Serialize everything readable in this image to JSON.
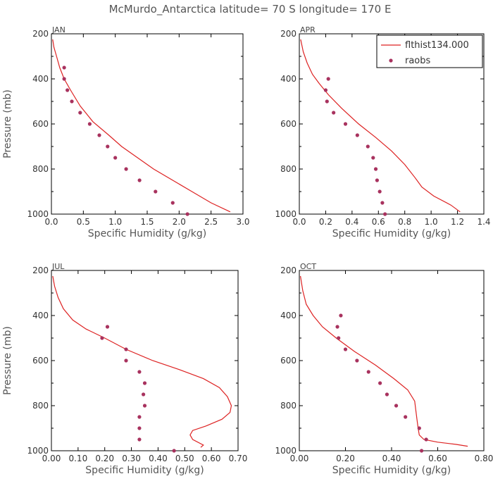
{
  "figure": {
    "title": "McMurdo_Antarctica  latitude= 70 S longitude= 170 E",
    "colors": {
      "model": "#dd2222",
      "obs": "#a8325e",
      "frame": "#000000"
    }
  },
  "chart_data": [
    {
      "type": "line",
      "title": "JAN",
      "xlabel": "Specific Humidity (g/kg)",
      "ylabel": "Pressure (mb)",
      "xlim": [
        0,
        3.0
      ],
      "ylim": [
        200,
        1000
      ],
      "xticks": [
        "0.0",
        "0.5",
        "1.0",
        "1.5",
        "2.0",
        "2.5",
        "3.0"
      ],
      "yticks": [
        "200",
        "400",
        "600",
        "800",
        "1000"
      ],
      "series": [
        {
          "name": "flthist134.000",
          "kind": "line",
          "x": [
            0.02,
            0.04,
            0.08,
            0.13,
            0.2,
            0.3,
            0.45,
            0.65,
            0.9,
            1.1,
            1.35,
            1.6,
            1.9,
            2.2,
            2.5,
            2.8
          ],
          "y": [
            225,
            260,
            300,
            350,
            400,
            450,
            520,
            590,
            650,
            700,
            750,
            800,
            850,
            900,
            950,
            990
          ]
        },
        {
          "name": "raobs",
          "kind": "scatter",
          "x": [
            0.2,
            0.2,
            0.25,
            0.32,
            0.45,
            0.6,
            0.75,
            0.88,
            1.0,
            1.17,
            1.38,
            1.63,
            1.9,
            2.13
          ],
          "y": [
            350,
            400,
            450,
            500,
            550,
            600,
            650,
            700,
            750,
            800,
            850,
            900,
            950,
            1000
          ]
        }
      ]
    },
    {
      "type": "line",
      "title": "APR",
      "xlabel": "Specific Humidity (g/kg)",
      "ylabel": "",
      "xlim": [
        0,
        1.4
      ],
      "ylim": [
        200,
        1000
      ],
      "xticks": [
        "0.0",
        "0.2",
        "0.4",
        "0.6",
        "0.8",
        "1.0",
        "1.2",
        "1.4"
      ],
      "yticks": [
        "200",
        "400",
        "600",
        "800",
        "1000"
      ],
      "legend": {
        "location": "top-right",
        "entries": [
          {
            "label": "flthist134.000",
            "kind": "line"
          },
          {
            "label": "raobs",
            "kind": "scatter"
          }
        ]
      },
      "series": [
        {
          "name": "flthist134.000",
          "kind": "line",
          "x": [
            0.01,
            0.03,
            0.06,
            0.1,
            0.15,
            0.22,
            0.32,
            0.45,
            0.58,
            0.7,
            0.8,
            0.88,
            0.93,
            1.02,
            1.15,
            1.22
          ],
          "y": [
            225,
            280,
            330,
            380,
            420,
            470,
            530,
            600,
            660,
            720,
            780,
            840,
            880,
            920,
            960,
            990
          ]
        },
        {
          "name": "raobs",
          "kind": "scatter",
          "x": [
            0.22,
            0.2,
            0.21,
            0.26,
            0.35,
            0.44,
            0.52,
            0.56,
            0.58,
            0.59,
            0.61,
            0.63,
            0.65
          ],
          "y": [
            400,
            450,
            500,
            550,
            600,
            650,
            700,
            750,
            800,
            850,
            900,
            950,
            1000
          ]
        }
      ]
    },
    {
      "type": "line",
      "title": "JUL",
      "xlabel": "Specific Humidity (g/kg)",
      "ylabel": "Pressure (mb)",
      "xlim": [
        0,
        0.7
      ],
      "ylim": [
        200,
        1000
      ],
      "xticks": [
        "0.00",
        "0.10",
        "0.20",
        "0.30",
        "0.40",
        "0.50",
        "0.60",
        "0.70"
      ],
      "yticks": [
        "200",
        "400",
        "600",
        "800",
        "1000"
      ],
      "series": [
        {
          "name": "flthist134.000",
          "kind": "line",
          "x": [
            0.005,
            0.012,
            0.025,
            0.045,
            0.08,
            0.13,
            0.2,
            0.28,
            0.38,
            0.48,
            0.57,
            0.63,
            0.66,
            0.675,
            0.67,
            0.64,
            0.58,
            0.53,
            0.52,
            0.53,
            0.57,
            0.56
          ],
          "y": [
            225,
            270,
            320,
            370,
            420,
            460,
            500,
            550,
            600,
            640,
            680,
            720,
            760,
            800,
            830,
            860,
            890,
            910,
            930,
            950,
            975,
            985
          ]
        },
        {
          "name": "raobs",
          "kind": "scatter",
          "x": [
            0.21,
            0.19,
            0.28,
            0.28,
            0.33,
            0.35,
            0.345,
            0.35,
            0.33,
            0.33,
            0.33,
            0.46
          ],
          "y": [
            450,
            500,
            550,
            600,
            650,
            700,
            750,
            800,
            850,
            900,
            950,
            1000
          ]
        }
      ]
    },
    {
      "type": "line",
      "title": "OCT",
      "xlabel": "Specific Humidity (g/kg)",
      "ylabel": "",
      "xlim": [
        0,
        0.8
      ],
      "ylim": [
        200,
        1000
      ],
      "xticks": [
        "0.00",
        "0.20",
        "0.40",
        "0.60",
        "0.80"
      ],
      "yticks": [
        "200",
        "400",
        "600",
        "800",
        "1000"
      ],
      "series": [
        {
          "name": "flthist134.000",
          "kind": "line",
          "x": [
            0.005,
            0.015,
            0.03,
            0.06,
            0.1,
            0.16,
            0.24,
            0.33,
            0.41,
            0.47,
            0.5,
            0.505,
            0.51,
            0.515,
            0.52,
            0.54,
            0.6,
            0.68,
            0.73
          ],
          "y": [
            225,
            290,
            350,
            400,
            450,
            500,
            560,
            620,
            680,
            730,
            780,
            820,
            860,
            900,
            930,
            950,
            962,
            972,
            980
          ]
        },
        {
          "name": "raobs",
          "kind": "scatter",
          "x": [
            0.18,
            0.165,
            0.17,
            0.2,
            0.25,
            0.3,
            0.35,
            0.38,
            0.42,
            0.46,
            0.52,
            0.55,
            0.53
          ],
          "y": [
            400,
            450,
            500,
            550,
            600,
            650,
            700,
            750,
            800,
            850,
            900,
            950,
            1000
          ]
        }
      ]
    }
  ]
}
